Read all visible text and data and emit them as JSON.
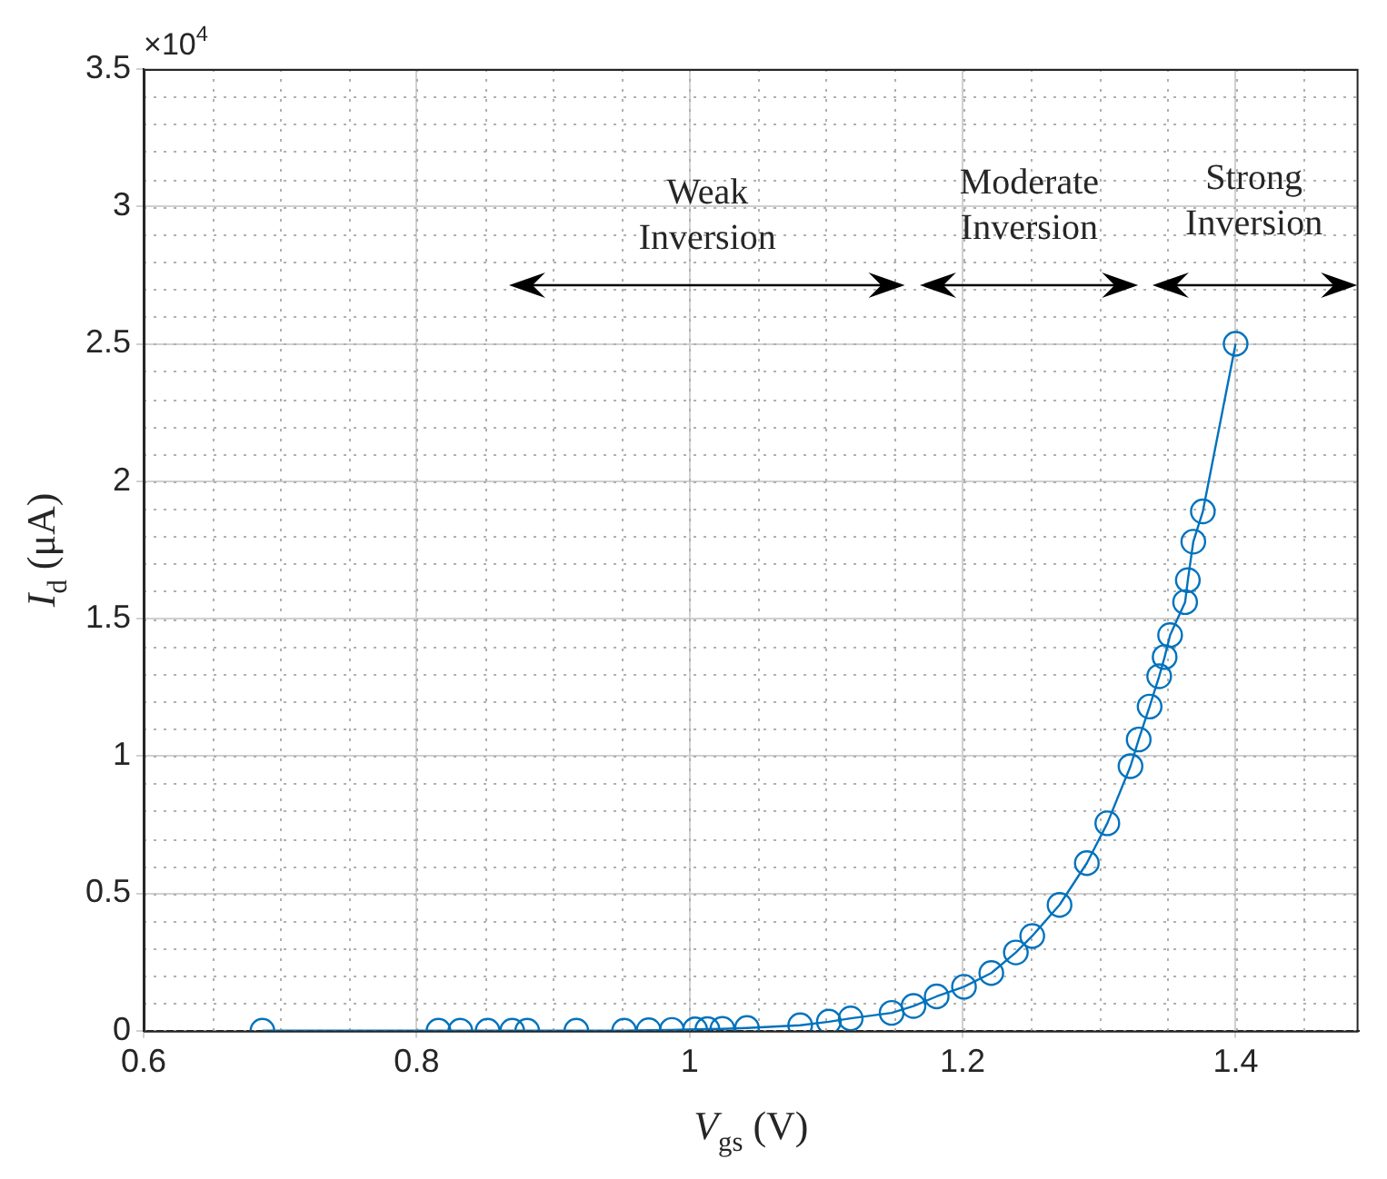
{
  "chart_data": {
    "type": "line",
    "xlabel": "V$_{gs}$ (V)",
    "ylabel": "I$_{d}$ (μA)",
    "x": [
      0.687,
      0.816,
      0.832,
      0.852,
      0.87,
      0.881,
      0.917,
      0.952,
      0.97,
      0.987,
      1.004,
      1.013,
      1.024,
      1.042,
      1.081,
      1.102,
      1.118,
      1.148,
      1.164,
      1.181,
      1.201,
      1.221,
      1.239,
      1.251,
      1.271,
      1.291,
      1.306,
      1.323,
      1.329,
      1.337,
      1.344,
      1.348,
      1.352,
      1.363,
      1.365,
      1.369,
      1.376,
      1.4
    ],
    "series": [
      {
        "color": "#0072bd",
        "values": [
          0,
          0,
          0,
          0,
          0,
          0,
          0,
          0,
          0.002,
          0.003,
          0.005,
          0.006,
          0.007,
          0.01,
          0.02,
          0.033,
          0.045,
          0.065,
          0.09,
          0.125,
          0.16,
          0.21,
          0.285,
          0.345,
          0.458,
          0.61,
          0.755,
          0.963,
          1.06,
          1.18,
          1.29,
          1.36,
          1.44,
          1.56,
          1.64,
          1.78,
          1.89,
          2.5
        ]
      }
    ],
    "marker": "circle",
    "line_style": "solid",
    "grid": true,
    "legend": false,
    "xlim": [
      0.6,
      1.49
    ],
    "xticks": [
      0.6,
      0.8,
      1,
      1.2,
      1.4
    ],
    "ylim": [
      0,
      3.5
    ],
    "yticks": [
      0,
      0.5,
      1,
      1.5,
      2,
      2.5,
      3,
      3.5
    ],
    "annotations": [
      "×10$^{4}$",
      "Weak Inversion",
      "Moderate Inversion",
      "Strong Inversion"
    ]
  }
}
